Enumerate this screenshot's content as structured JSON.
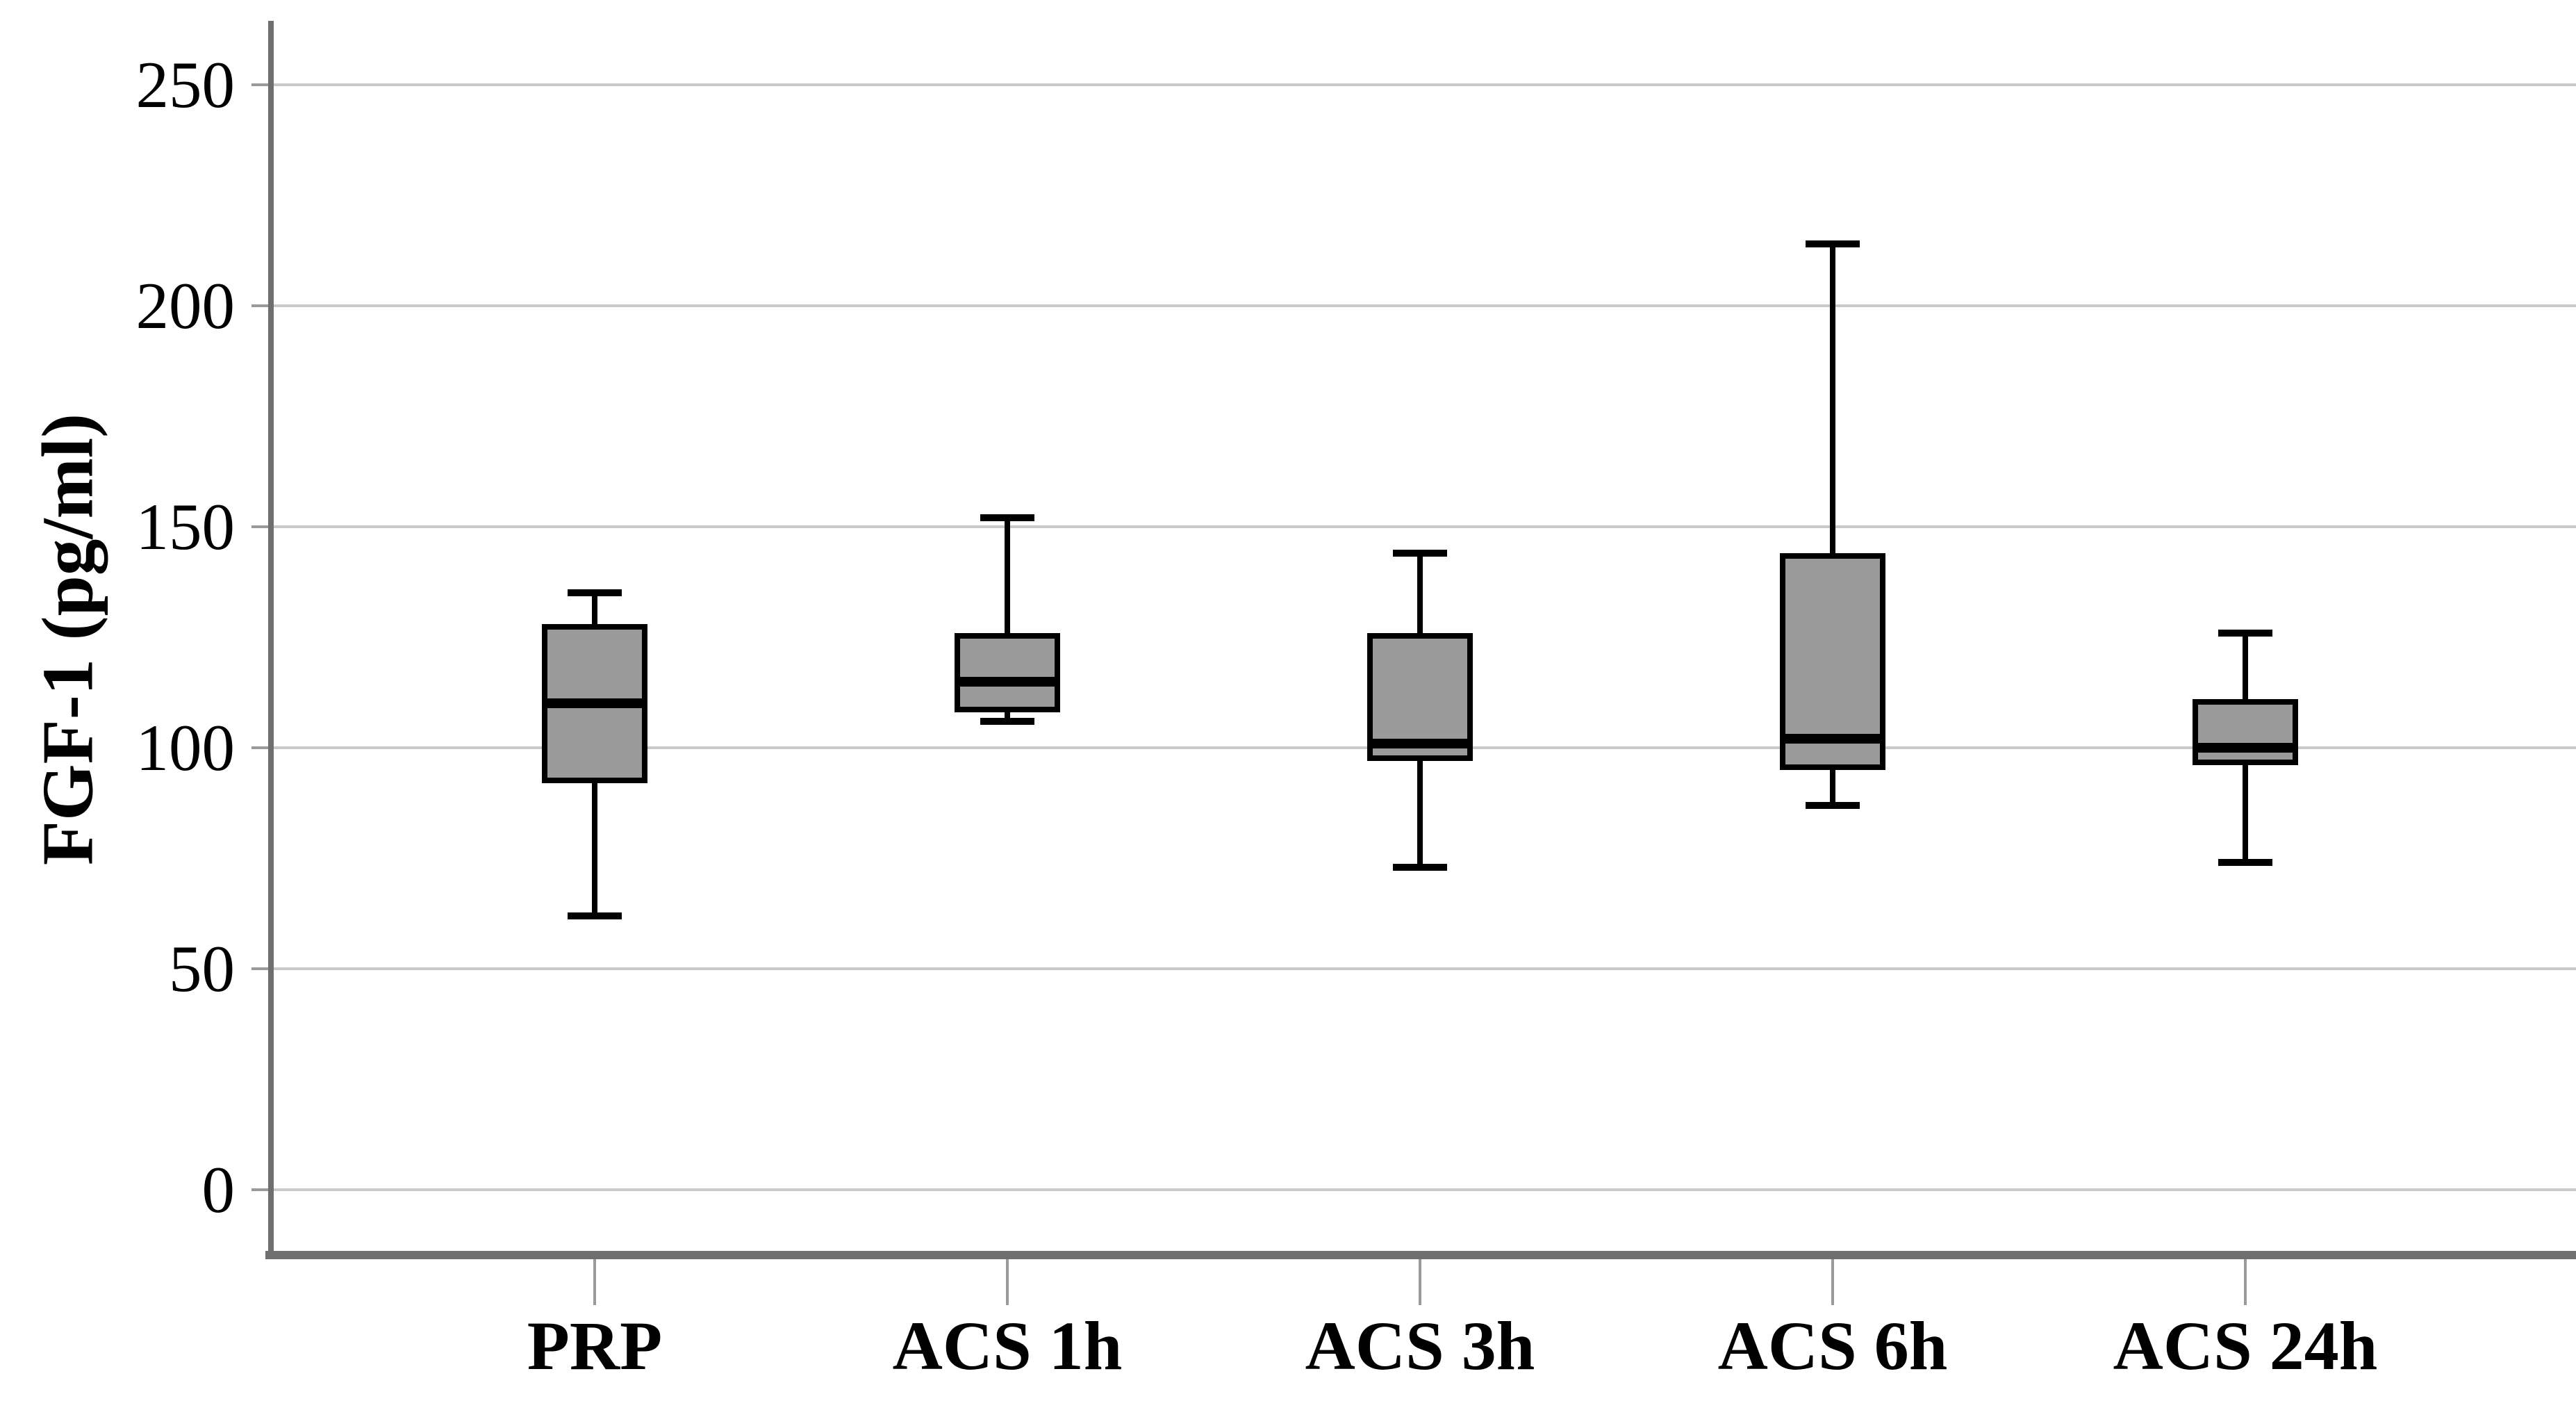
{
  "figure": {
    "background": "#ffffff"
  },
  "chart_data": {
    "type": "boxplot",
    "title": "",
    "ylabel": "FGF-1 (pg/ml)",
    "xlabel": "",
    "categories": [
      "PRP",
      "ACS 1h",
      "ACS 3h",
      "ACS 6h",
      "ACS 24h"
    ],
    "y_ticks": [
      0,
      50,
      100,
      150,
      200,
      250
    ],
    "ylim": [
      0,
      250
    ],
    "grid": "horizontal-light-gray",
    "legend": "none",
    "boxes": [
      {
        "category": "PRP",
        "min": 62,
        "q1": 92,
        "median": 110,
        "q3": 128,
        "max": 135
      },
      {
        "category": "ACS 1h",
        "min": 106,
        "q1": 108,
        "median": 115,
        "q3": 126,
        "max": 152
      },
      {
        "category": "ACS 3h",
        "min": 73,
        "q1": 97,
        "median": 101,
        "q3": 126,
        "max": 144
      },
      {
        "category": "ACS 6h",
        "min": 87,
        "q1": 95,
        "median": 102,
        "q3": 144,
        "max": 214
      },
      {
        "category": "ACS 24h",
        "min": 74,
        "q1": 96,
        "median": 100,
        "q3": 111,
        "max": 126
      }
    ],
    "colors": {
      "box_fill": "#9a9a9a",
      "box_border": "#000000",
      "median": "#000000",
      "whisker": "#000000",
      "gridline": "#c9c9c9",
      "axis": "#6f6f6f",
      "tick": "#9a9a9a",
      "text": "#000000",
      "background": "#ffffff"
    }
  }
}
